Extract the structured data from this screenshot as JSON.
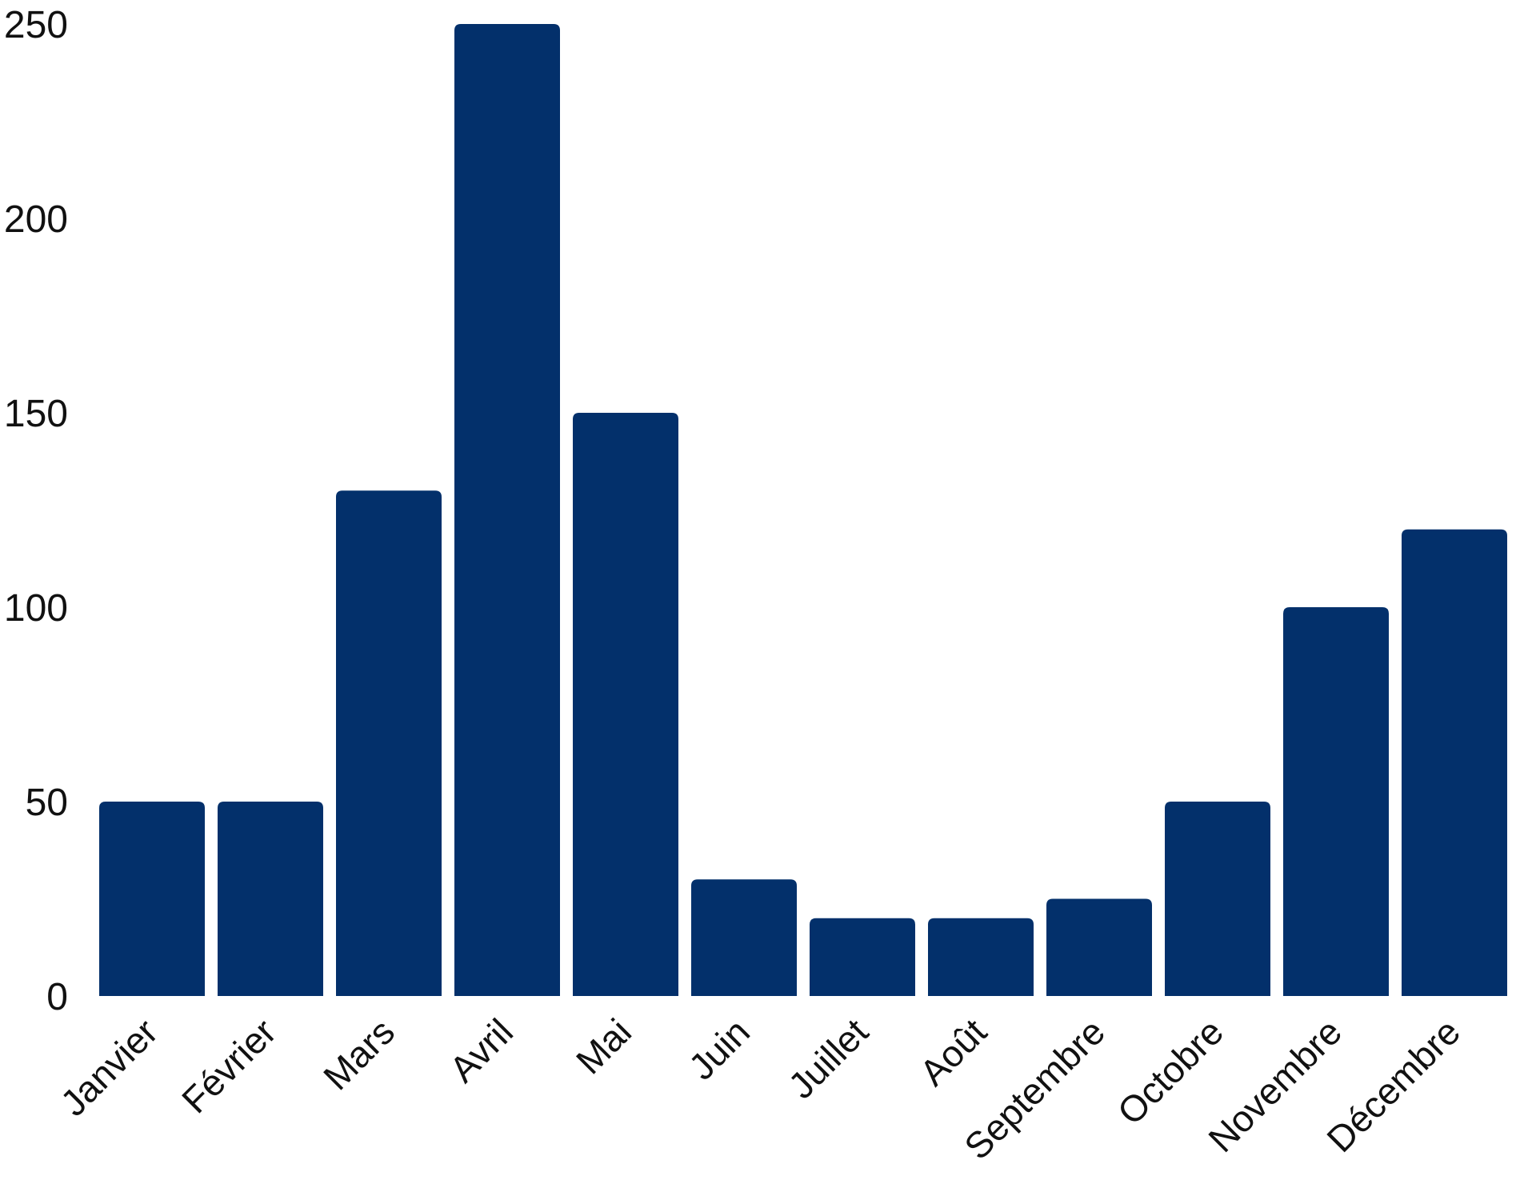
{
  "chart_data": {
    "type": "bar",
    "title": "",
    "xlabel": "",
    "ylabel": "",
    "categories": [
      "Janvier",
      "Février",
      "Mars",
      "Avril",
      "Mai",
      "Juin",
      "Juillet",
      "Août",
      "Septembre",
      "Octobre",
      "Novembre",
      "Décembre"
    ],
    "values": [
      50,
      50,
      130,
      250,
      150,
      30,
      20,
      20,
      25,
      50,
      100,
      120
    ],
    "ylim": [
      0,
      250
    ],
    "yticks": [
      0,
      50,
      100,
      150,
      200,
      250
    ],
    "grid": false,
    "legend": "none",
    "bar_color": "#03306b"
  }
}
